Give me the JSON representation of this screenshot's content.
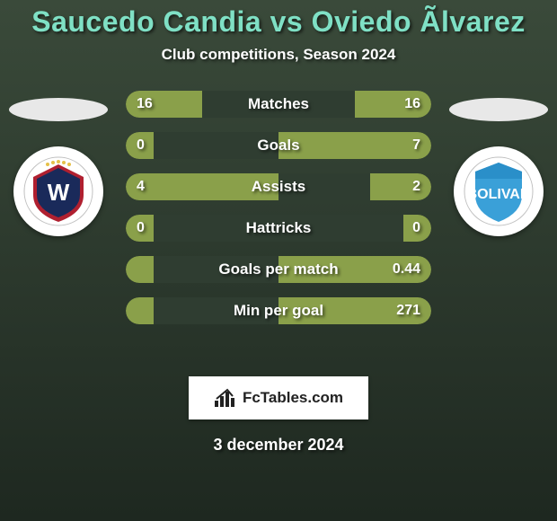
{
  "colors": {
    "bg_top": "#3a4a3a",
    "bg_bottom": "#1e2820",
    "title": "#7fe0c5",
    "subtitle": "#ffffff",
    "bar_track": "#2f3d31",
    "bar_left_fill": "#8aa04a",
    "bar_right_fill": "#8aa04a",
    "bar_label": "#ffffff",
    "bar_value": "#ffffff",
    "oval": "#e8e8e8",
    "crest_bg": "#ffffff",
    "brand_bg": "#ffffff",
    "brand_text": "#222222",
    "date": "#ffffff"
  },
  "fonts": {
    "title_size": 32,
    "subtitle_size": 17,
    "bar_label_size": 17,
    "bar_value_size": 16,
    "brand_size": 17,
    "date_size": 18
  },
  "title": "Saucedo Candia vs Oviedo Ãlvarez",
  "subtitle": "Club competitions, Season 2024",
  "date": "3 december 2024",
  "brand": "FcTables.com",
  "crest_left": {
    "bg": "#ffffff",
    "initials": "W",
    "initials_color": "#b02030"
  },
  "crest_right": {
    "bg": "#ffffff",
    "initials": "B",
    "initials_color": "#2a8fc9"
  },
  "metrics": [
    {
      "label": "Matches",
      "left_text": "16",
      "right_text": "16",
      "left_pct": 50,
      "right_pct": 50
    },
    {
      "label": "Goals",
      "left_text": "0",
      "right_text": "7",
      "left_pct": 18,
      "right_pct": 100
    },
    {
      "label": "Assists",
      "left_text": "4",
      "right_text": "2",
      "left_pct": 100,
      "right_pct": 40
    },
    {
      "label": "Hattricks",
      "left_text": "0",
      "right_text": "0",
      "left_pct": 18,
      "right_pct": 18
    },
    {
      "label": "Goals per match",
      "left_text": "",
      "right_text": "0.44",
      "left_pct": 18,
      "right_pct": 100
    },
    {
      "label": "Min per goal",
      "left_text": "",
      "right_text": "271",
      "left_pct": 18,
      "right_pct": 100
    }
  ]
}
